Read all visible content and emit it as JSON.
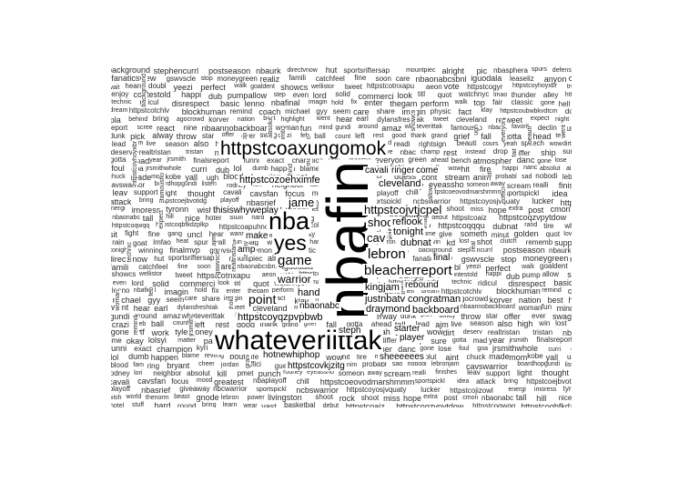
{
  "cloud": {
    "main_word": "nbafin",
    "large_words": {
      "whateverittak": "whateveriittak",
      "httpstcoaxungomok": "httpstcoaxungomok",
      "nba": "nba",
      "yes": "yes",
      "lebron": "lebron",
      "bleacherreport": "bleacherreport",
      "game": "game",
      "cav": "cav",
      "shook": "shook",
      "jame": "jame",
      "warrior": "warrior",
      "point": "point",
      "httpstcojvtjcpel": "httpstcojvtjcpel",
      "kingjam": "kingjam",
      "draymond": "draymond",
      "backboard": "backboard",
      "justnbatv": "justnbatv",
      "congratman": "congratman",
      "rebound": "rebound",
      "httpstcoyqzpvpbwb": "httpstcoyqzpvpbwb",
      "httpstcozoehximfe": "httpstcozoehximfe",
      "thisiswhyweplay": "thisiswhyweplay",
      "hand": "hand",
      "love": "love",
      "nbaonabc": "nbaonabc",
      "tonight": "tonight",
      "refl ook": "reflook",
      "cleveland": "cleveland",
      "player": "player",
      "make": "make",
      "amp": "amp",
      "sheeeeees": "sheeeeees",
      "hotnewhiphop": "hotnewhiphop",
      "httpstcovkjzitg": "httpstcovkjzitg",
      "steph": "steph",
      "debut": "debut",
      "starter": "starter",
      "dubnat": "dubnat",
      "get": "get",
      "kevin": "kevin",
      "watch": "watch",
      "move": "move",
      "cavali": "cavali",
      "ringer": "ringer",
      "come": "come",
      "final": "final",
      "httpstcoufotcuowyfkd": "httpstcoofodecdu"
    },
    "small_words": [
      "background",
      "stephencurrl",
      "postseason",
      "nbaurk",
      "directvnow",
      "hut",
      "sportsriftersap",
      "mountpiec",
      "alright",
      "pic",
      "nbasphera",
      "spurs",
      "defens",
      "fanaticsview",
      "gswvscle",
      "stop",
      "moneygreen",
      "realiz",
      "famili",
      "catchfeel",
      "fine",
      "soon",
      "care",
      "nbaonabcsbnl",
      "iguodala",
      "leaseliz",
      "anyon",
      "camps",
      "wait",
      "heard",
      "doubl",
      "yeezi",
      "perfect",
      "walk",
      "goaldent",
      "showcs",
      "wellistor",
      "tweet",
      "httpstcotnxapu",
      "aeon",
      "vote",
      "httpstcogyr",
      "httpstcoyhoyxbr",
      "trump",
      "enjoy",
      "contestold",
      "happi",
      "dub",
      "pump",
      "allow",
      "step",
      "even",
      "lord",
      "solid",
      "commerci",
      "look",
      "titl",
      "quot",
      "watchnyc",
      "lmao",
      "thunder",
      "alley",
      "httpstcoforeodu",
      "technic",
      "ridicul",
      "disrespect",
      "basic",
      "lenno",
      "nbafinal",
      "imagin",
      "hold",
      "fix",
      "enter",
      "thegam",
      "perform",
      "walk",
      "top",
      "fair",
      "classic",
      "gone",
      "hell",
      "dream",
      "httpstcotchlv",
      "blockhuman",
      "remind",
      "coach",
      "michael",
      "gyy",
      "seem",
      "care",
      "share",
      "imagin",
      "physic",
      "fact",
      "klay",
      "httpstcoubwbkvdtcm",
      "done",
      "pla",
      "behind",
      "bring",
      "agocrowd",
      "korver",
      "nation",
      "best",
      "highlight",
      "went",
      "hear",
      "earl",
      "dylansfreshtak",
      "tweet",
      "cleveland",
      "retweet",
      "expect",
      "night",
      "report",
      "scree",
      "react",
      "nine",
      "nbaannobackboard",
      "woman",
      "fun",
      "mind",
      "gundi",
      "around",
      "amaz",
      "whateverittak",
      "famousflo",
      "nbaall",
      "favorit",
      "declin",
      "underway",
      "dunk",
      "pick",
      "alway",
      "throw",
      "star",
      "offer",
      "ever",
      "swag",
      "crazi",
      "feb",
      "ball",
      "count",
      "left",
      "rest",
      "good",
      "thank",
      "grand",
      "grief",
      "fall",
      "gotta",
      "ahead",
      "tell",
      "lead",
      "ajm",
      "live",
      "season",
      "also",
      "high",
      "win",
      "lost",
      "gone",
      "wtf",
      "work",
      "tylerjroney",
      "need",
      "readi",
      "rightsign",
      "beauti",
      "cours",
      "yeah",
      "speech",
      "wow",
      "dirt",
      "deserv",
      "realtristan",
      "tristan",
      "nbaeast",
      "time",
      "okay",
      "lolsyi",
      "matter",
      "pass",
      "dunk",
      "drive",
      "nbac",
      "champ",
      "rest",
      "instead",
      "drop",
      "differ",
      "ship",
      "sure",
      "gotta",
      "mad",
      "year",
      "jrsmith",
      "finalsreport",
      "funni",
      "exact",
      "champion",
      "kyri",
      "aggress",
      "everyon",
      "green",
      "ahead",
      "bench",
      "atmospher",
      "danc",
      "gone",
      "lose",
      "foul",
      "goa",
      "jrsmithwhole",
      "curri",
      "dub",
      "lol",
      "dumb",
      "happen",
      "blame",
      "reveng",
      "bout",
      "life",
      "babi",
      "real",
      "jeff",
      "wow",
      "hit",
      "fire",
      "happi",
      "nanc",
      "absolut",
      "aint",
      "chuck",
      "made",
      "mom",
      "kobe",
      "yall",
      "ugh",
      "blood",
      "fam",
      "ring",
      "bryant",
      "cheer",
      "jordan",
      "offici",
      "guess",
      "cont",
      "stream",
      "anim",
      "probabl",
      "sad",
      "nobodi",
      "lebronjam",
      "cavswarrior",
      "boardhopgundi",
      "listen",
      "rodney",
      "lori",
      "neighbor",
      "absolut",
      "kill",
      "pmet",
      "punch",
      "rodney",
      "eyeassho",
      "someon",
      "away",
      "scream",
      "realli",
      "finishes",
      "leav",
      "support",
      "light",
      "thought",
      "cavali",
      "cavsfan",
      "focus",
      "mood",
      "greatest",
      "nbaplayoff",
      "chill",
      "httpstcoeovodmarshmmm",
      "sportspickl",
      "idea",
      "attack",
      "bring",
      "httpstcoejbvotidg",
      "playoff",
      "nbasrief",
      "giveaway",
      "nbcwarrior",
      "sportspickl",
      "ncbswarrior",
      "httpstcoyosjvquaty",
      "lucker",
      "httpstcojizowl",
      "energi",
      "imoress",
      "tyronn",
      "wish",
      "world",
      "thenorm",
      "beast",
      "gnode",
      "lebron",
      "power",
      "livingston",
      "shoot",
      "rock",
      "shoot",
      "miss",
      "hope",
      "extra",
      "post",
      "cmon",
      "nbaonabc",
      "tall",
      "hill",
      "nice",
      "hotel",
      "stuff",
      "hard",
      "round",
      "bring",
      "learn",
      "wear",
      "vast",
      "basketbal",
      "debut",
      "httpstcoaiz",
      "httpstcoqzvpytdow",
      "httpstcoqwqq",
      "httpstcoqbfkdzplkp",
      "httpstcoapuhnosxer",
      "httpstcokdkb",
      "httpstcoxkdwsbb",
      "httpstcouuqu",
      "httpstcoqqqu",
      "dubnat",
      "rand",
      "tire",
      "whole",
      "sit",
      "fight",
      "fine",
      "gang",
      "uncl",
      "hear",
      "wanna",
      "anyon",
      "yall",
      "okay",
      "bet",
      "ask",
      "read",
      "goal",
      "goe",
      "wore",
      "home",
      "give",
      "someth",
      "minut",
      "golden",
      "quot",
      "love",
      "rain",
      "goat",
      "lmfao",
      "heat",
      "spur",
      "yall",
      "fun",
      "flag",
      "whole",
      "play",
      "harden",
      "tyler",
      "watch",
      "bron",
      "heard",
      "kevin",
      "kd",
      "lost",
      "shot",
      "clutch",
      "rememb",
      "support",
      "tonight",
      "winning",
      "finalmvp",
      "gswvscle",
      "draymondgreen",
      "celtic",
      "jerseyday",
      "httpstcogopp"
    ]
  }
}
